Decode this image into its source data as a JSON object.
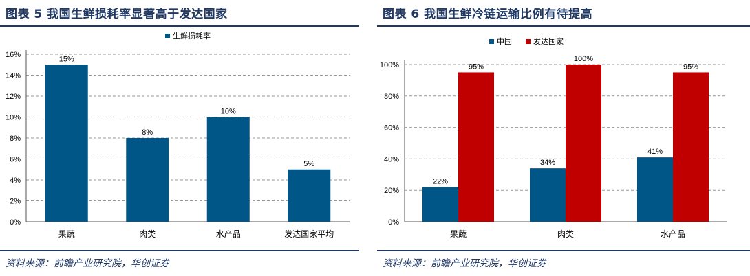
{
  "left": {
    "title": "图表 5  我国生鲜损耗率显著高于发达国家",
    "source": "资料来源：前瞻产业研究院，华创证券"
  },
  "right": {
    "title": "图表 6 我国生鲜冷链运输比例有待提高",
    "source": "资料来源：前瞻产业研究院，华创证券"
  },
  "chart_data": [
    {
      "type": "bar",
      "title": "",
      "xlabel": "",
      "ylabel": "",
      "categories": [
        "果蔬",
        "肉类",
        "水产品",
        "发达国家平均"
      ],
      "series": [
        {
          "name": "生鲜损耗率",
          "color": "#005686",
          "values": [
            15,
            8,
            10,
            5
          ],
          "labels": [
            "15%",
            "8%",
            "10%",
            "5%"
          ]
        }
      ],
      "ylim": [
        0,
        16
      ],
      "yticks": [
        0,
        2,
        4,
        6,
        8,
        10,
        12,
        14,
        16
      ],
      "ytick_labels": [
        "0%",
        "2%",
        "4%",
        "6%",
        "8%",
        "10%",
        "12%",
        "14%",
        "16%"
      ],
      "grid": true,
      "legend": "top-center"
    },
    {
      "type": "bar",
      "title": "",
      "xlabel": "",
      "ylabel": "",
      "categories": [
        "果蔬",
        "肉类",
        "水产品"
      ],
      "series": [
        {
          "name": "中国",
          "color": "#005686",
          "values": [
            22,
            34,
            41
          ],
          "labels": [
            "22%",
            "34%",
            "41%"
          ]
        },
        {
          "name": "发达国家",
          "color": "#c00000",
          "values": [
            95,
            100,
            95
          ],
          "labels": [
            "95%",
            "100%",
            "95%"
          ]
        }
      ],
      "ylim": [
        0,
        100
      ],
      "yticks": [
        0,
        20,
        40,
        60,
        80,
        100
      ],
      "ytick_labels": [
        "0%",
        "20%",
        "40%",
        "60%",
        "80%",
        "100%"
      ],
      "grid": true,
      "legend": "top-left"
    }
  ]
}
